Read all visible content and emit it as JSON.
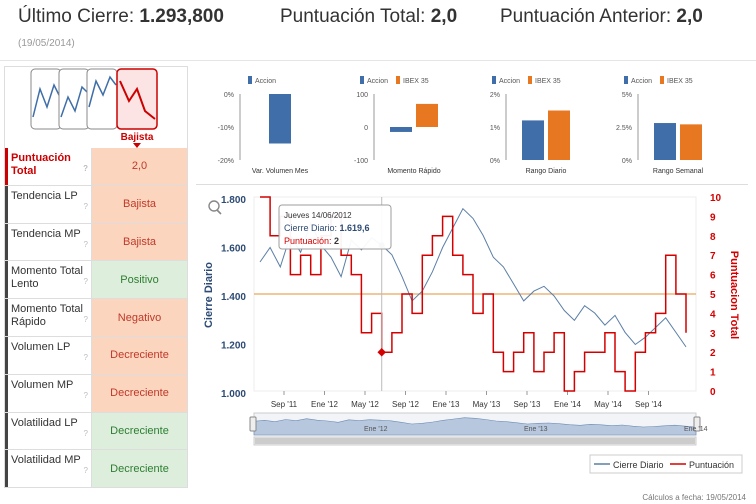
{
  "header": {
    "cierre_label": "Último Cierre:",
    "cierre_value": "1.293,800",
    "punt_label": "Puntuación Total:",
    "punt_value": "2,0",
    "ant_label": "Puntuación Anterior:",
    "ant_value": "2,0",
    "date": "(19/05/2014)"
  },
  "trend": {
    "label": "Bajista"
  },
  "rows": [
    {
      "label": "Puntuación Total",
      "value": "2,0",
      "type": "neg"
    },
    {
      "label": "Tendencia LP",
      "value": "Bajista",
      "type": "neg"
    },
    {
      "label": "Tendencia MP",
      "value": "Bajista",
      "type": "neg"
    },
    {
      "label": "Momento Total Lento",
      "value": "Positivo",
      "type": "pos"
    },
    {
      "label": "Momento Total Rápido",
      "value": "Negativo",
      "type": "neg"
    },
    {
      "label": "Volumen LP",
      "value": "Decreciente",
      "type": "neg"
    },
    {
      "label": "Volumen MP",
      "value": "Decreciente",
      "type": "neg"
    },
    {
      "label": "Volatilidad LP",
      "value": "Decreciente",
      "type": "pos"
    },
    {
      "label": "Volatilidad MP",
      "value": "Decreciente",
      "type": "pos"
    }
  ],
  "colors": {
    "accion": "#3f6ea8",
    "ibex": "#e87722",
    "red": "#d40000",
    "line": "#5b7fa6"
  },
  "chart_data": [
    {
      "type": "bar",
      "title": "Var. Volumen Mes",
      "legend": [
        "Accion"
      ],
      "yticks": [
        "0%",
        "-10%",
        "-20%"
      ],
      "ylim": [
        -20,
        0
      ],
      "series": [
        {
          "name": "Accion",
          "values": [
            -15
          ]
        }
      ]
    },
    {
      "type": "bar",
      "title": "Momento Rápido",
      "legend": [
        "Accion",
        "IBEX 35"
      ],
      "yticks": [
        "100",
        "0",
        "-100"
      ],
      "ylim": [
        -100,
        100
      ],
      "series": [
        {
          "name": "Accion",
          "values": [
            -15
          ]
        },
        {
          "name": "IBEX 35",
          "values": [
            70
          ]
        }
      ]
    },
    {
      "type": "bar",
      "title": "Rango Diario",
      "legend": [
        "Accion",
        "IBEX 35"
      ],
      "yticks": [
        "2%",
        "1%",
        "0%"
      ],
      "ylim": [
        0,
        2
      ],
      "series": [
        {
          "name": "Accion",
          "values": [
            1.2
          ]
        },
        {
          "name": "IBEX 35",
          "values": [
            1.5
          ]
        }
      ]
    },
    {
      "type": "bar",
      "title": "Rango Semanal",
      "legend": [
        "Accion",
        "IBEX 35"
      ],
      "yticks": [
        "5%",
        "2.5%",
        "0%"
      ],
      "ylim": [
        0,
        5
      ],
      "series": [
        {
          "name": "Accion",
          "values": [
            2.8
          ]
        },
        {
          "name": "IBEX 35",
          "values": [
            2.7
          ]
        }
      ]
    },
    {
      "type": "line",
      "ylabel_left": "Cierre Diario",
      "ylabel_right": "Puntuacion Total",
      "yticks_left": [
        "1.800",
        "1.600",
        "1.400",
        "1.200",
        "1.000"
      ],
      "ylim_left": [
        1000,
        1800
      ],
      "yticks_right": [
        "10",
        "9",
        "8",
        "7",
        "6",
        "5",
        "4",
        "3",
        "2",
        "1",
        "0"
      ],
      "ylim_right": [
        0,
        10
      ],
      "xticks": [
        "Sep '11",
        "Ene '12",
        "May '12",
        "Sep '12",
        "Ene '13",
        "May '13",
        "Sep '13",
        "Ene '14",
        "May '14",
        "Sep '14"
      ],
      "navigator_labels": [
        "Ene '12",
        "Ene '13",
        "Ene '14"
      ],
      "tooltip": {
        "date": "Jueves 14/06/2012",
        "cierre_label": "Cierre Diario:",
        "cierre": "1.619,6",
        "punt_label": "Puntuación:",
        "punt": "2"
      },
      "legend": [
        "Cierre Diario",
        "Puntuación"
      ],
      "series": [
        {
          "name": "Cierre Diario",
          "values": [
            1540,
            1600,
            1520,
            1650,
            1580,
            1700,
            1610,
            1560,
            1480,
            1630,
            1590,
            1640,
            1610,
            1570,
            1480,
            1380,
            1420,
            1500,
            1600,
            1680,
            1760,
            1720,
            1650,
            1560,
            1520,
            1450,
            1380,
            1420,
            1440,
            1400,
            1340,
            1300,
            1360,
            1330,
            1280,
            1320,
            1250,
            1200,
            1230,
            1270,
            1310,
            1250,
            1190
          ]
        },
        {
          "name": "Puntuación",
          "values": [
            10,
            8,
            9,
            6,
            7,
            6,
            8,
            9,
            7,
            6,
            3,
            4,
            2,
            3,
            5,
            4,
            7,
            8,
            9,
            7,
            6,
            4,
            5,
            2,
            1,
            2,
            3,
            1,
            2,
            3,
            0,
            1,
            2,
            2,
            3,
            1,
            0,
            2,
            3,
            4,
            7,
            5,
            3
          ]
        }
      ]
    }
  ],
  "footer": "Cálculos a fecha: 19/05/2014"
}
